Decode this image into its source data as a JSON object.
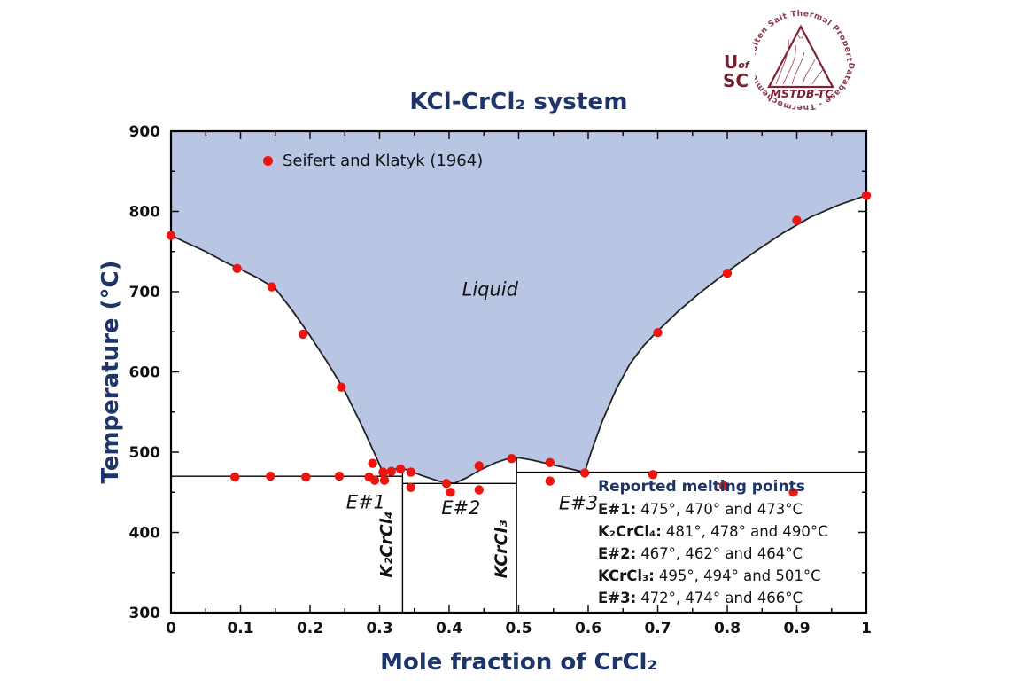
{
  "header": {
    "title": "KCl-CrCl₂ system"
  },
  "logo": {
    "ring_top": "Molten Salt Thermal Properties",
    "ring_bottom": "Database - Thermochemical",
    "university_u": "U",
    "university_of": "of",
    "university_sc": "SC",
    "acronym": "MSTDB-TC",
    "color": "#7e2231"
  },
  "legend": {
    "label": "Seifert and Klatyk (1964)"
  },
  "melting_points": {
    "title": "Reported melting points",
    "items": [
      {
        "label": "E#1:",
        "value": "475°, 470° and 473°C"
      },
      {
        "label": "K₂CrCl₄:",
        "value": "481°, 478° and 490°C"
      },
      {
        "label": "E#2:",
        "value": "467°, 462° and 464°C"
      },
      {
        "label": "KCrCl₃:",
        "value": "495°, 494° and 501°C"
      },
      {
        "label": "E#3:",
        "value": "472°, 474° and 466°C"
      }
    ]
  },
  "chart_data": {
    "type": "scatter",
    "title": "KCl-CrCl₂ system",
    "xlabel": "Mole fraction of CrCl₂",
    "ylabel": "Temperature (°C)",
    "xlim": [
      0,
      1
    ],
    "ylim": [
      300,
      900
    ],
    "grid": false,
    "legend_position": "upper-left-inside",
    "xticks": {
      "values": [
        0,
        0.1,
        0.2,
        0.3,
        0.4,
        0.5,
        0.6,
        0.7,
        0.8,
        0.9,
        1
      ],
      "labels": [
        "0",
        "0.1",
        "0.2",
        "0.3",
        "0.4",
        "0.5",
        "0.6",
        "0.7",
        "0.8",
        "0.9",
        "1"
      ]
    },
    "yticks": {
      "values": [
        300,
        400,
        500,
        600,
        700,
        800,
        900
      ],
      "labels": [
        "300",
        "400",
        "500",
        "600",
        "700",
        "800",
        "900"
      ]
    },
    "series": [
      {
        "name": "Seifert and Klatyk (1964)",
        "marker": "circle",
        "points": [
          [
            0.0,
            770
          ],
          [
            0.095,
            729
          ],
          [
            0.145,
            706
          ],
          [
            0.19,
            647
          ],
          [
            0.245,
            581
          ],
          [
            0.092,
            469
          ],
          [
            0.143,
            470
          ],
          [
            0.194,
            469
          ],
          [
            0.242,
            470
          ],
          [
            0.285,
            469
          ],
          [
            0.29,
            486
          ],
          [
            0.293,
            465
          ],
          [
            0.305,
            475
          ],
          [
            0.307,
            465
          ],
          [
            0.317,
            476
          ],
          [
            0.33,
            479
          ],
          [
            0.345,
            475
          ],
          [
            0.345,
            456
          ],
          [
            0.396,
            461
          ],
          [
            0.402,
            450
          ],
          [
            0.443,
            483
          ],
          [
            0.443,
            453
          ],
          [
            0.49,
            492
          ],
          [
            0.545,
            487
          ],
          [
            0.545,
            464
          ],
          [
            0.595,
            474
          ],
          [
            0.693,
            472
          ],
          [
            0.7,
            649
          ],
          [
            0.795,
            458
          ],
          [
            0.8,
            723
          ],
          [
            0.895,
            450
          ],
          [
            0.9,
            789
          ],
          [
            1.0,
            820
          ]
        ]
      }
    ],
    "liquidus": [
      [
        0,
        770
      ],
      [
        0.02,
        762
      ],
      [
        0.05,
        750
      ],
      [
        0.08,
        736
      ],
      [
        0.1,
        728
      ],
      [
        0.125,
        717
      ],
      [
        0.15,
        704
      ],
      [
        0.175,
        676
      ],
      [
        0.2,
        645
      ],
      [
        0.225,
        612
      ],
      [
        0.25,
        576
      ],
      [
        0.275,
        532
      ],
      [
        0.295,
        494
      ],
      [
        0.307,
        470
      ],
      [
        0.316,
        477
      ],
      [
        0.327,
        480
      ],
      [
        0.34,
        478
      ],
      [
        0.36,
        471
      ],
      [
        0.385,
        464
      ],
      [
        0.407,
        461
      ],
      [
        0.425,
        468
      ],
      [
        0.445,
        478
      ],
      [
        0.467,
        487
      ],
      [
        0.485,
        492
      ],
      [
        0.5,
        493
      ],
      [
        0.52,
        490
      ],
      [
        0.545,
        485
      ],
      [
        0.57,
        480
      ],
      [
        0.595,
        475
      ],
      [
        0.605,
        502
      ],
      [
        0.62,
        538
      ],
      [
        0.64,
        578
      ],
      [
        0.66,
        610
      ],
      [
        0.68,
        633
      ],
      [
        0.7,
        651
      ],
      [
        0.73,
        676
      ],
      [
        0.76,
        698
      ],
      [
        0.8,
        725
      ],
      [
        0.84,
        750
      ],
      [
        0.88,
        773
      ],
      [
        0.92,
        793
      ],
      [
        0.96,
        808
      ],
      [
        1,
        820
      ]
    ],
    "eutectic_lines": [
      {
        "name": "E#1",
        "temperature": 470,
        "x_from": 0,
        "x_to": 0.333
      },
      {
        "name": "E#2",
        "temperature": 461,
        "x_from": 0.333,
        "x_to": 0.497
      },
      {
        "name": "E#3",
        "temperature": 475,
        "x_from": 0.497,
        "x_to": 1
      }
    ],
    "compound_lines": [
      {
        "name": "K₂CrCl₄",
        "x": 0.333,
        "t_from": 300,
        "t_to": 480
      },
      {
        "name": "KCrCl₃",
        "x": 0.497,
        "t_from": 300,
        "t_to": 493
      }
    ],
    "region_labels": [
      {
        "text": "Liquid",
        "x": 0.459,
        "t": 703,
        "rotate": 0,
        "bold": false,
        "size": 21
      },
      {
        "text": "E#1",
        "x": 0.28,
        "t": 438,
        "rotate": 0,
        "bold": false,
        "size": 21
      },
      {
        "text": "E#2",
        "x": 0.417,
        "t": 431,
        "rotate": 0,
        "bold": false,
        "size": 21
      },
      {
        "text": "E#3",
        "x": 0.586,
        "t": 437,
        "rotate": 0,
        "bold": false,
        "size": 21
      },
      {
        "text": "K₂CrCl₄",
        "x": 0.309,
        "t": 385,
        "rotate": -90,
        "bold": true,
        "size": 19
      },
      {
        "text": "KCrCl₃",
        "x": 0.474,
        "t": 379,
        "rotate": -90,
        "bold": true,
        "size": 19
      }
    ],
    "colors": {
      "liquid_fill": "#b8c6e4",
      "curve": "#222222",
      "line": "#000000",
      "marker": "#ee1410",
      "axis_text": "#111111",
      "navy": "#1d3569"
    }
  }
}
